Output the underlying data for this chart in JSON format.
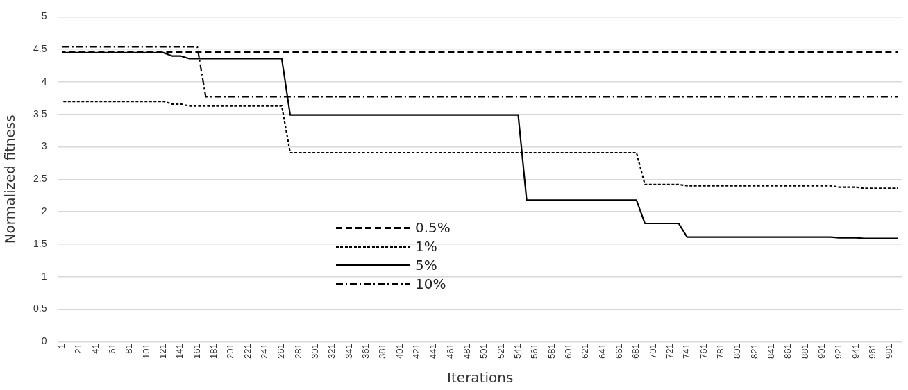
{
  "chart_data": {
    "type": "line",
    "xlabel": "Iterations",
    "ylabel": "Normalized fitness",
    "xlim": [
      -4,
      996
    ],
    "xticks": [
      1,
      21,
      41,
      61,
      81,
      101,
      121,
      141,
      161,
      181,
      201,
      221,
      241,
      261,
      281,
      301,
      321,
      341,
      361,
      381,
      401,
      421,
      441,
      461,
      481,
      501,
      521,
      541,
      561,
      581,
      601,
      621,
      641,
      661,
      681,
      701,
      721,
      741,
      761,
      781,
      801,
      821,
      841,
      861,
      881,
      901,
      921,
      941,
      961,
      981
    ],
    "ylim": [
      0,
      5
    ],
    "yticks": [
      0,
      0.5,
      1,
      1.5,
      2,
      2.5,
      3,
      3.5,
      4,
      4.5,
      5
    ],
    "grid": "y",
    "legend": "bottom",
    "marker": "none",
    "series": [
      {
        "name": "0.5%",
        "color": "#000000",
        "line_style": "dashed",
        "x": [
          1,
          991
        ],
        "values": [
          4.46,
          4.46
        ]
      },
      {
        "name": "1%",
        "color": "#000000",
        "line_style": "dotted",
        "x": [
          1,
          121,
          131,
          141,
          151,
          261,
          271,
          681,
          691,
          731,
          741,
          911,
          921,
          941,
          951,
          991
        ],
        "values": [
          3.7,
          3.7,
          3.66,
          3.66,
          3.63,
          3.63,
          2.91,
          2.91,
          2.42,
          2.42,
          2.4,
          2.4,
          2.38,
          2.38,
          2.36,
          2.36
        ]
      },
      {
        "name": "5%",
        "color": "#000000",
        "line_style": "solid",
        "x": [
          1,
          121,
          131,
          141,
          151,
          261,
          271,
          541,
          551,
          681,
          691,
          731,
          741,
          911,
          921,
          941,
          951,
          991
        ],
        "values": [
          4.45,
          4.45,
          4.4,
          4.4,
          4.36,
          4.36,
          3.49,
          3.49,
          2.18,
          2.18,
          1.82,
          1.82,
          1.61,
          1.61,
          1.6,
          1.6,
          1.59,
          1.59
        ]
      },
      {
        "name": "10%",
        "color": "#000000",
        "line_style": "dashdot",
        "x": [
          1,
          161,
          171,
          991
        ],
        "values": [
          4.54,
          4.54,
          3.77,
          3.77
        ]
      }
    ]
  }
}
